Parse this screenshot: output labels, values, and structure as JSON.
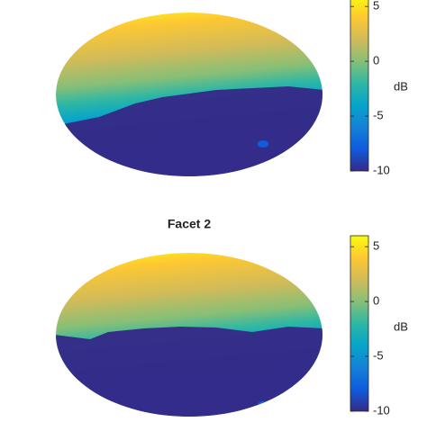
{
  "chart_data": [
    {
      "type": "heatmap",
      "clim": [
        -10,
        6
      ],
      "cticks": [
        5,
        0,
        -5,
        -10
      ],
      "clabel": "dB",
      "colormap": [
        "#352a87",
        "#0f5cdd",
        "#1481d6",
        "#06a4ca",
        "#2eb7a4",
        "#87bf77",
        "#d1bb59",
        "#fec832",
        "#f9fb0e"
      ]
    },
    {
      "type": "heatmap",
      "title": "Facet 2",
      "clim": [
        -10,
        6
      ],
      "cticks": [
        5,
        0,
        -5,
        -10
      ],
      "clabel": "dB",
      "colormap": [
        "#352a87",
        "#0f5cdd",
        "#1481d6",
        "#06a4ca",
        "#2eb7a4",
        "#87bf77",
        "#d1bb59",
        "#fec832",
        "#f9fb0e"
      ]
    }
  ]
}
